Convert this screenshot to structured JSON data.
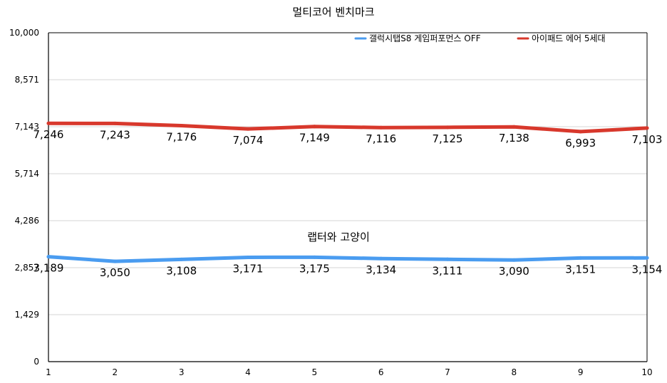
{
  "chart_data": {
    "type": "line",
    "title": "멀티코어 벤치마크",
    "watermark": "랩터와 고양이",
    "xlabel": "",
    "ylabel": "",
    "x": [
      1,
      2,
      3,
      4,
      5,
      6,
      7,
      8,
      9,
      10
    ],
    "x_tick_labels": [
      "1",
      "2",
      "3",
      "4",
      "5",
      "6",
      "7",
      "8",
      "9",
      "10"
    ],
    "ylim": [
      0,
      10000
    ],
    "y_ticks": [
      0,
      1429,
      2857,
      4286,
      5714,
      7143,
      8571,
      10000
    ],
    "y_tick_labels": [
      "0",
      "1,429",
      "2,857",
      "4,286",
      "5,714",
      "7,143",
      "8,571",
      "10,000"
    ],
    "grid": true,
    "legend_position": "top-right",
    "series": [
      {
        "name": "갤럭시탭S8 게임퍼포먼스 OFF",
        "color": "#4a9cf0",
        "values": [
          3189,
          3050,
          3108,
          3171,
          3175,
          3134,
          3111,
          3090,
          3151,
          3154
        ],
        "labels": [
          "3,189",
          "3,050",
          "3,108",
          "3,171",
          "3,175",
          "3,134",
          "3,111",
          "3,090",
          "3,151",
          "3,154"
        ]
      },
      {
        "name": "아이패드 에어 5세대",
        "color": "#d8382c",
        "values": [
          7246,
          7243,
          7176,
          7074,
          7149,
          7116,
          7125,
          7138,
          6993,
          7103
        ],
        "labels": [
          "7,246",
          "7,243",
          "7,176",
          "7,074",
          "7,149",
          "7,116",
          "7,125",
          "7,138",
          "6,993",
          "7,103"
        ]
      }
    ]
  }
}
